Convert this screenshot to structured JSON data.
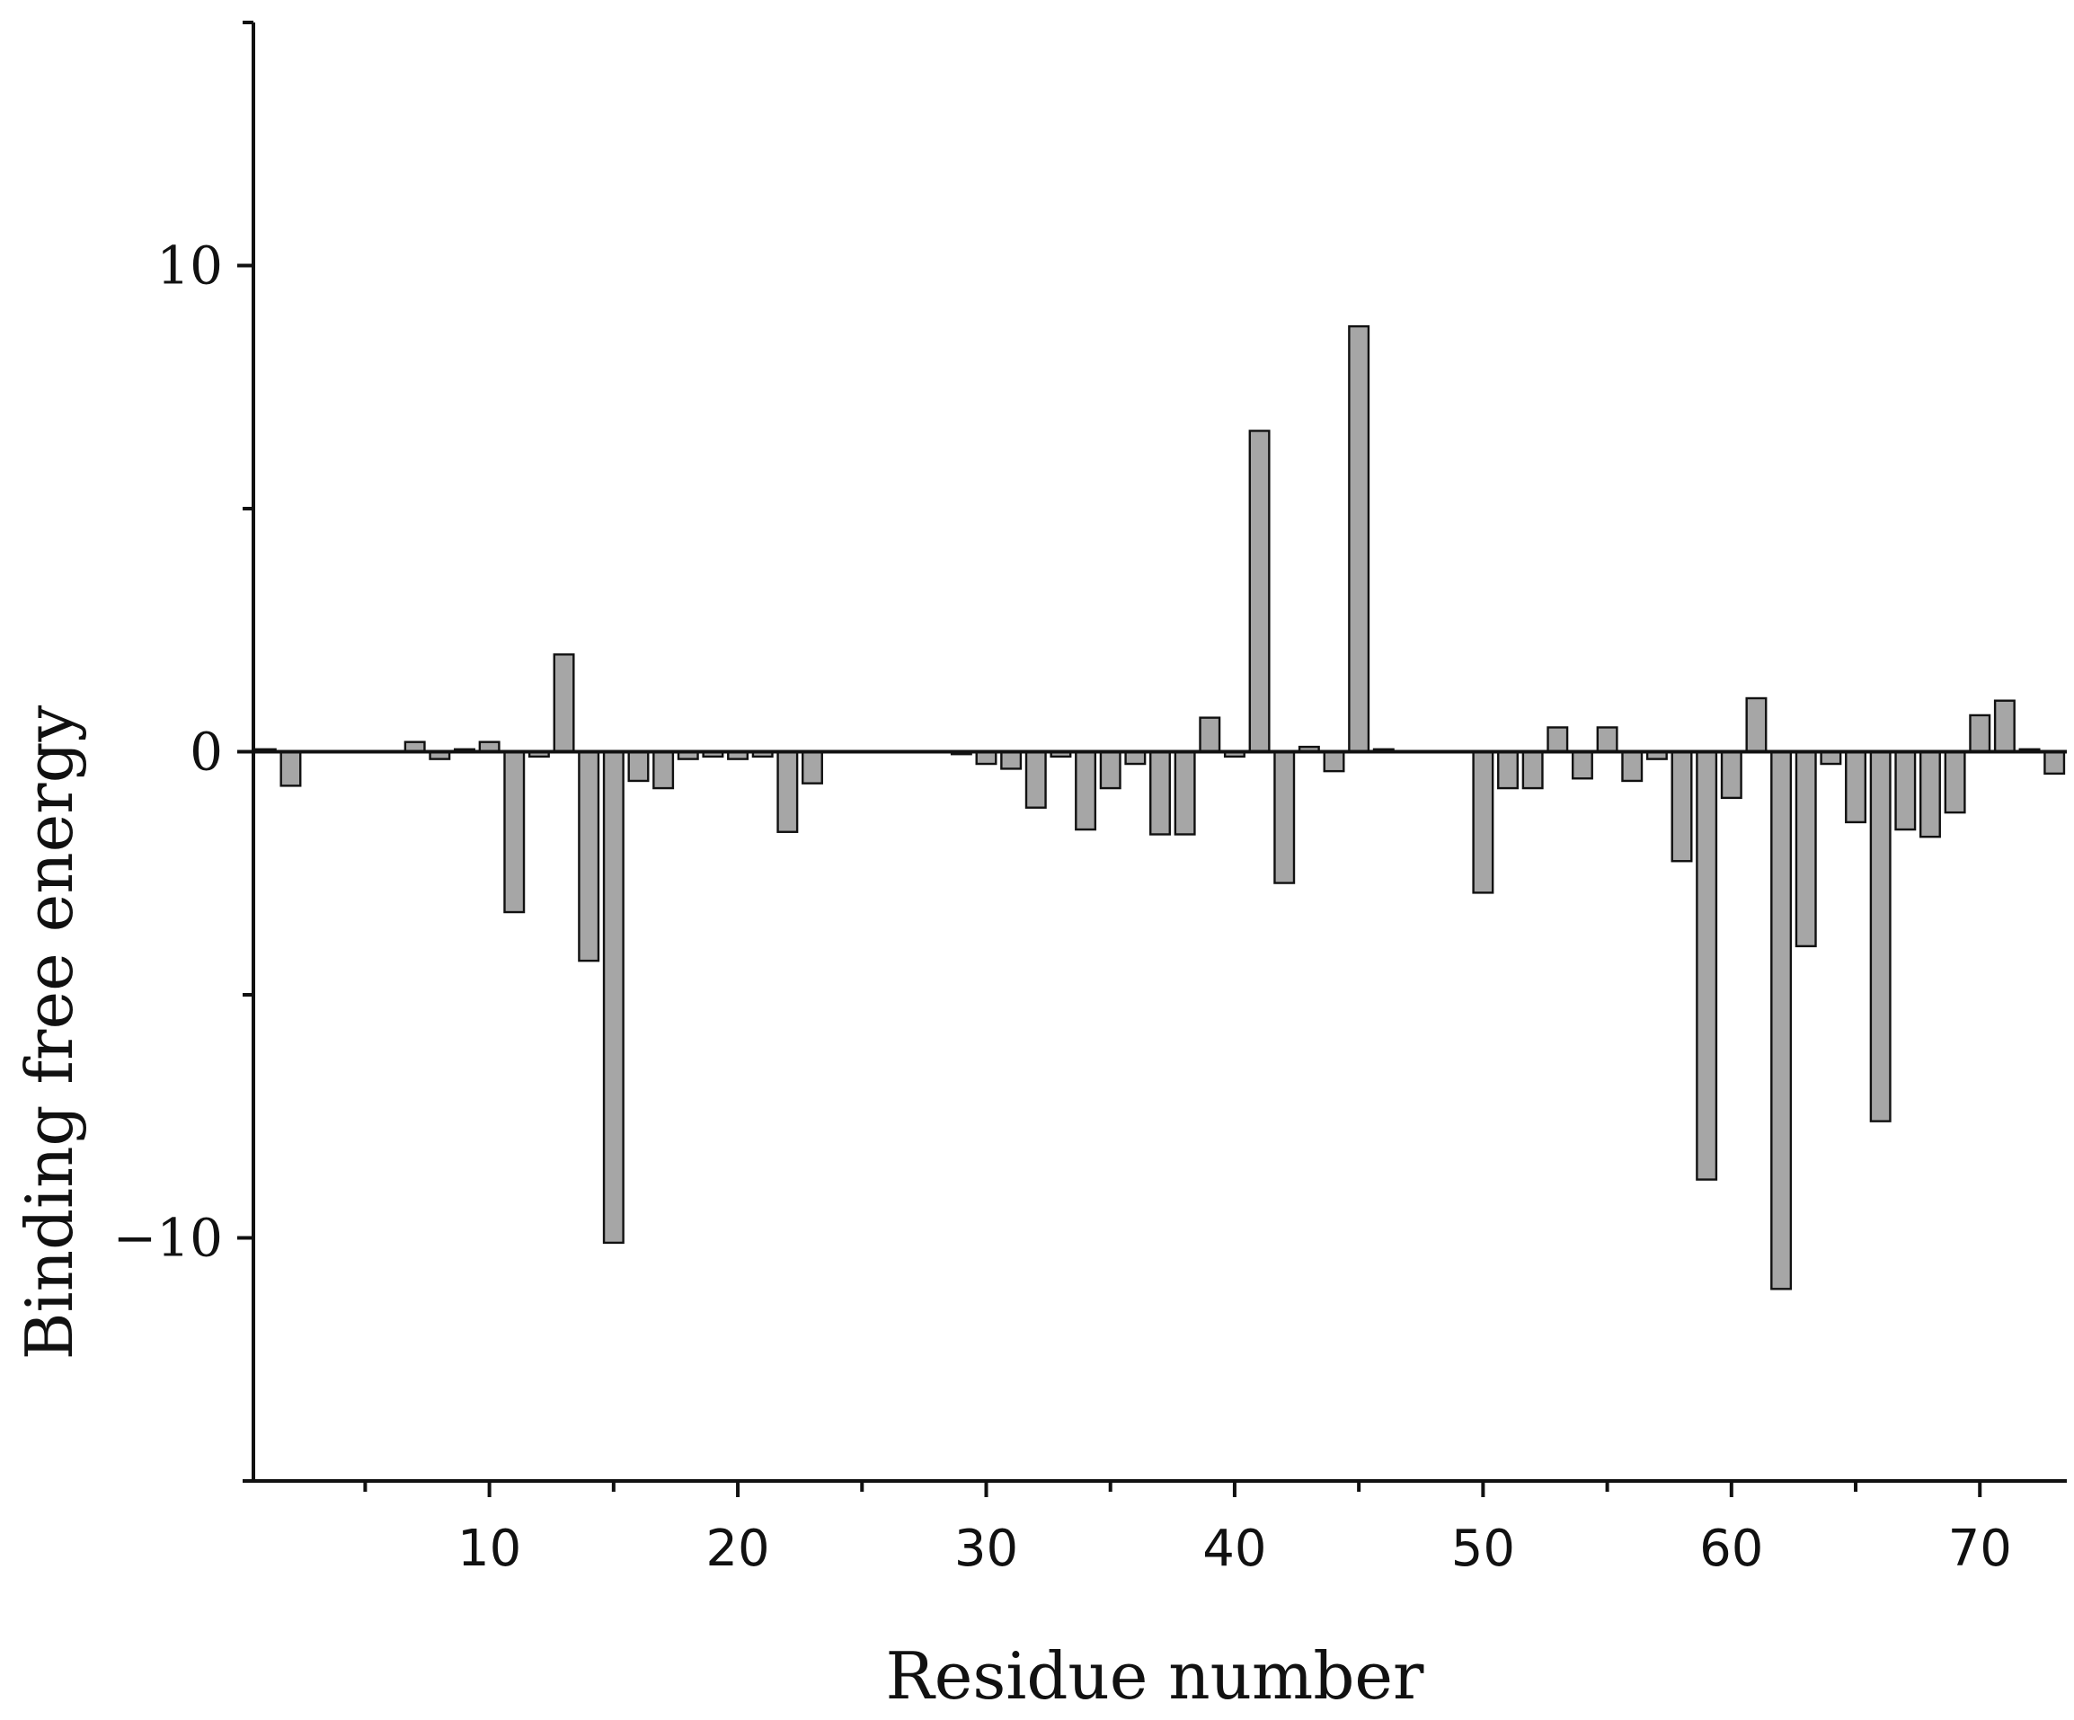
{
  "chart_data": {
    "type": "bar",
    "title": "",
    "xlabel": "Residue number",
    "ylabel": "Binding free energy",
    "xlim": [
      0.5,
      73.5
    ],
    "ylim": [
      -15,
      15
    ],
    "x_ticks": [
      10,
      20,
      30,
      40,
      50,
      60,
      70
    ],
    "x_minor_ticks": [
      5,
      15,
      25,
      35,
      45,
      55,
      65
    ],
    "y_ticks": [
      10,
      0,
      -10
    ],
    "y_tick_labels": [
      "10",
      "0",
      "−10"
    ],
    "y_minor_ticks": [
      15,
      5,
      -5,
      -15
    ],
    "grid": false,
    "bar_color": "#a6a6a6",
    "edge_color": "#111111",
    "x": [
      1,
      2,
      3,
      4,
      5,
      6,
      7,
      8,
      9,
      10,
      11,
      12,
      13,
      14,
      15,
      16,
      17,
      18,
      19,
      20,
      21,
      22,
      23,
      24,
      25,
      26,
      27,
      28,
      29,
      30,
      31,
      32,
      33,
      34,
      35,
      36,
      37,
      38,
      39,
      40,
      41,
      42,
      43,
      44,
      45,
      46,
      47,
      48,
      49,
      50,
      51,
      52,
      53,
      54,
      55,
      56,
      57,
      58,
      59,
      60,
      61,
      62,
      63,
      64,
      65,
      66,
      67,
      68,
      69,
      70,
      71,
      72,
      73
    ],
    "values": [
      0.05,
      -0.7,
      0,
      0,
      0,
      0,
      0.2,
      -0.15,
      0.05,
      0.2,
      -3.3,
      -0.1,
      2.0,
      -4.3,
      -10.1,
      -0.6,
      -0.75,
      -0.15,
      -0.1,
      -0.15,
      -0.1,
      -1.65,
      -0.65,
      0,
      0,
      0,
      0,
      0,
      -0.05,
      -0.25,
      -0.35,
      -1.15,
      -0.1,
      -1.6,
      -0.75,
      -0.25,
      -1.7,
      -1.7,
      0.7,
      -0.1,
      6.6,
      -2.7,
      0.1,
      -0.4,
      8.75,
      0.05,
      0,
      0,
      0,
      -2.9,
      -0.75,
      -0.75,
      0.5,
      -0.55,
      0.5,
      -0.6,
      -0.15,
      -2.25,
      -8.8,
      -0.95,
      1.1,
      -11.05,
      -4.0,
      -0.25,
      -1.45,
      -7.6,
      -1.6,
      -1.75,
      -1.25,
      0.75,
      1.05,
      0.05,
      -0.45
    ]
  }
}
